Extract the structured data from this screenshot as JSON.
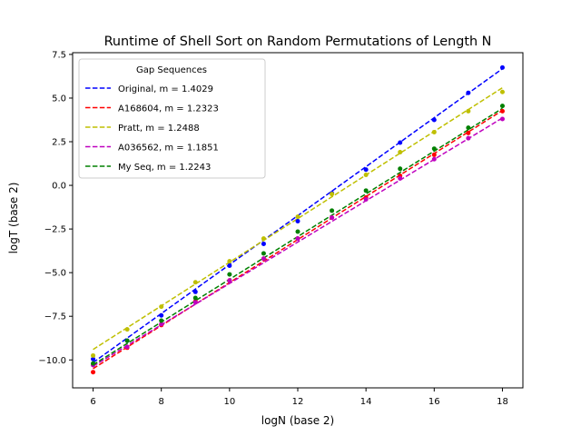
{
  "chart_data": {
    "type": "scatter",
    "title": "Runtime of Shell Sort on Random Permutations of Length N",
    "xlabel": "logN (base 2)",
    "ylabel": "logT (base 2)",
    "xlim": [
      5.4,
      18.6
    ],
    "ylim": [
      -11.6,
      7.6
    ],
    "xticks": [
      6,
      8,
      10,
      12,
      14,
      16,
      18
    ],
    "yticks": [
      -10.0,
      -7.5,
      -5.0,
      -2.5,
      0.0,
      2.5,
      5.0,
      7.5
    ],
    "xtick_labels": [
      "6",
      "8",
      "10",
      "12",
      "14",
      "16",
      "18"
    ],
    "ytick_labels": [
      "−10.0",
      "−7.5",
      "−5.0",
      "−2.5",
      "0.0",
      "2.5",
      "5.0",
      "7.5"
    ],
    "grid": false,
    "legend": {
      "title": "Gap Sequences",
      "position": "top-left"
    },
    "x": [
      6,
      7,
      8,
      9,
      10,
      11,
      12,
      13,
      14,
      15,
      16,
      17,
      18
    ],
    "series": [
      {
        "name": "Original, m = 1.4029",
        "color": "#0000ff",
        "values": [
          -9.95,
          -8.9,
          -7.45,
          -6.1,
          -4.6,
          -3.35,
          -2.05,
          -0.45,
          0.9,
          2.45,
          3.75,
          5.3,
          6.75
        ],
        "fit": [
          -10.15,
          6.68
        ]
      },
      {
        "name": "A168604, m = 1.2323",
        "color": "#ff0000",
        "values": [
          -10.7,
          -9.3,
          -8.0,
          -6.65,
          -5.45,
          -4.2,
          -3.05,
          -1.85,
          -0.7,
          0.55,
          1.75,
          3.0,
          4.25
        ],
        "fit": [
          -10.5,
          4.29
        ]
      },
      {
        "name": "Pratt, m = 1.2488",
        "color": "#bfbf00",
        "values": [
          -9.75,
          -8.25,
          -6.95,
          -5.55,
          -4.35,
          -3.05,
          -1.8,
          -0.5,
          0.6,
          1.9,
          3.05,
          4.25,
          5.35
        ],
        "fit": [
          -9.4,
          5.59
        ]
      },
      {
        "name": "A036562, m = 1.1851",
        "color": "#bf00bf",
        "values": [
          -10.3,
          -9.25,
          -7.95,
          -6.7,
          -5.45,
          -4.2,
          -3.05,
          -1.85,
          -0.8,
          0.4,
          1.5,
          2.7,
          3.8
        ],
        "fit": [
          -10.36,
          3.86
        ]
      },
      {
        "name": "My Seq, m = 1.2243",
        "color": "#008000",
        "values": [
          -10.2,
          -8.9,
          -7.75,
          -6.45,
          -5.1,
          -3.9,
          -2.65,
          -1.45,
          -0.3,
          0.95,
          2.1,
          3.3,
          4.55
        ],
        "fit": [
          -10.28,
          4.41
        ]
      }
    ]
  }
}
